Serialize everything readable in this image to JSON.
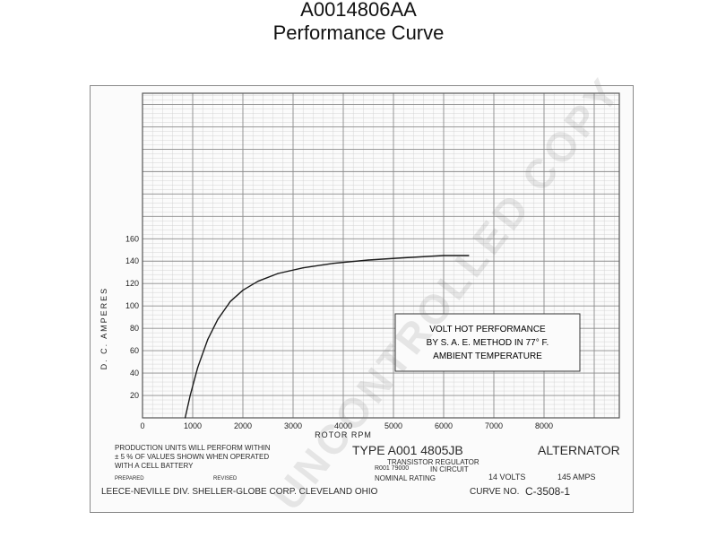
{
  "header": {
    "part_number": "A0014806AA",
    "subtitle": "Performance Curve"
  },
  "chart_data": {
    "type": "line",
    "xlabel": "ROTOR RPM",
    "ylabel": "D. C. AMPERES",
    "xlim": [
      0,
      9500
    ],
    "ylim": [
      0,
      160
    ],
    "x_ticks": [
      0,
      1000,
      2000,
      3000,
      4000,
      5000,
      6000,
      7000,
      8000
    ],
    "y_ticks": [
      20,
      40,
      60,
      80,
      100,
      120,
      140,
      160
    ],
    "grid": true,
    "series": [
      {
        "x": [
          850,
          950,
          1100,
          1300,
          1500,
          1750,
          2000,
          2300,
          2700,
          3200,
          3800,
          4500,
          5200,
          6000,
          6500
        ],
        "values": [
          0,
          20,
          45,
          70,
          88,
          104,
          114,
          122,
          129,
          134,
          138,
          141,
          143,
          145,
          145
        ]
      }
    ],
    "annotation": {
      "line1": "VOLT HOT PERFORMANCE",
      "line2": "BY  S. A. E.  METHOD  IN  77° F.",
      "line3": "AMBIENT  TEMPERATURE"
    }
  },
  "footer": {
    "production_note_1": "PRODUCTION  UNITS  WILL  PERFORM  WITHIN",
    "production_note_2": "± 5 %  OF  VALUES  SHOWN  WHEN  OPERATED",
    "production_note_3": "WITH  A  CELL BATTERY",
    "type_label": "TYPE  A001 4805JB",
    "alternator_label": "ALTERNATOR",
    "regulator_label": "TRANSISTOR  REGULATOR",
    "regulator_part": "R001 79000",
    "in_circuit": "IN CIRCUIT",
    "nominal_rating": "NOMINAL RATING",
    "volts": "14 VOLTS",
    "amps": "145 AMPS",
    "prepared": "PREPARED",
    "revised": "REVISED",
    "company": "LEECE-NEVILLE  DIV.  SHELLER-GLOBE  CORP.  CLEVELAND  OHIO",
    "curve_no_label": "CURVE NO.",
    "curve_no": "C-3508-1"
  },
  "watermark": "UNCONTROLLED COPY",
  "colors": {
    "grid_minor": "#d4d4d4",
    "grid_major": "#8c8c8c",
    "curve": "#1a1a1a"
  }
}
